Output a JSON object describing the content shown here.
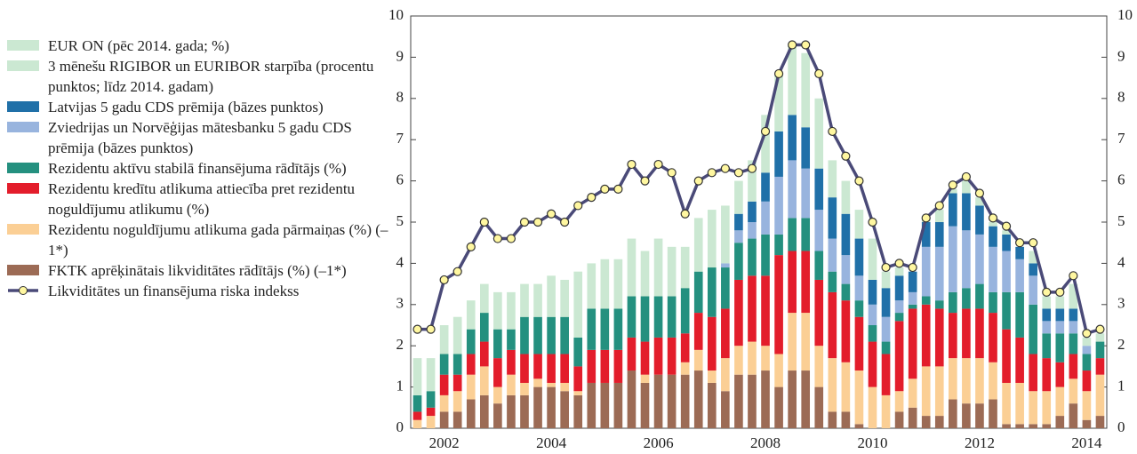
{
  "chart_data": {
    "type": "bar",
    "categories": [
      null,
      null,
      "2002",
      null,
      null,
      null,
      null,
      null,
      null,
      null,
      "2004",
      null,
      null,
      null,
      null,
      null,
      null,
      null,
      "2006",
      null,
      null,
      null,
      null,
      null,
      null,
      null,
      "2008",
      null,
      null,
      null,
      null,
      null,
      null,
      null,
      "2010",
      null,
      null,
      null,
      null,
      null,
      null,
      null,
      "2012",
      null,
      null,
      null,
      null,
      null,
      null,
      null,
      "2014",
      null
    ],
    "ylim": [
      0,
      10
    ],
    "yticks": [
      0,
      1,
      2,
      3,
      4,
      5,
      6,
      7,
      8,
      9,
      10
    ],
    "y2lim": [
      0,
      10
    ],
    "y2ticks": [
      0,
      1,
      2,
      3,
      4,
      5,
      6,
      7,
      8,
      9,
      10
    ],
    "stacked": true,
    "series": [
      {
        "name": "EUR ON (pēc 2014. gada; %)",
        "color": "#cbe8d2",
        "values": [
          0,
          0,
          0,
          0,
          0,
          0,
          0,
          0,
          0,
          0,
          0,
          0,
          0,
          0,
          0,
          0,
          0,
          0,
          0,
          0,
          0,
          0,
          0,
          0,
          0,
          0,
          0,
          0,
          0,
          0,
          0,
          0,
          0,
          0,
          0,
          0,
          0,
          0,
          0,
          0,
          0,
          0,
          0,
          0,
          0,
          0,
          0,
          0,
          0.3,
          0.6,
          0.2,
          0.2
        ]
      },
      {
        "name": "3 mēnešu RIGIBOR un EURIBOR starpība (procentu punktos; līdz 2014. gadam)",
        "color": "#cbe8d2",
        "values": [
          0.9,
          0.8,
          0.7,
          0.9,
          0.7,
          0.7,
          0.9,
          0.9,
          0.8,
          0.8,
          1.0,
          0.9,
          1.6,
          1.1,
          1.2,
          1.2,
          1.4,
          1.1,
          1.4,
          1.2,
          1.0,
          1.3,
          1.4,
          1.4,
          0.8,
          1.0,
          1.4,
          1.4,
          1.7,
          1.8,
          1.7,
          0.9,
          0.8,
          0.7,
          1.0,
          0.4,
          0.2,
          0,
          0.1,
          0.3,
          0.1,
          0.3,
          0.2,
          0.1,
          0.1,
          0,
          0.3,
          0.3,
          0,
          0,
          0,
          0
        ]
      },
      {
        "name": "Latvijas 5 gadu CDS prēmija (bāzes punktos)",
        "color": "#2070a8",
        "values": [
          0,
          0,
          0,
          0,
          0,
          0,
          0,
          0,
          0,
          0,
          0,
          0,
          0,
          0,
          0,
          0,
          0,
          0,
          0,
          0,
          0,
          0,
          0,
          0,
          0.4,
          0.5,
          0.7,
          1.1,
          1.1,
          1.0,
          1.0,
          1.0,
          1.0,
          0.9,
          0.6,
          0.7,
          0.6,
          0.5,
          0.6,
          0.6,
          0.8,
          0.9,
          0.7,
          0.5,
          0.4,
          0.3,
          0.3,
          0.3,
          0.3,
          0.3,
          0,
          0
        ]
      },
      {
        "name": "Zviedrijas un Norvēģijas mātesbanku 5 gadu CDS prēmija (bāzes punktos)",
        "color": "#98b4de",
        "values": [
          0,
          0,
          0,
          0,
          0,
          0,
          0,
          0,
          0,
          0,
          0,
          0,
          0,
          0,
          0,
          0,
          0,
          0,
          0,
          0,
          0,
          0,
          0,
          0.1,
          0.3,
          0.4,
          0.8,
          1.4,
          1.4,
          1.2,
          1.0,
          0.8,
          0.7,
          0.6,
          0.5,
          0.6,
          0.3,
          0.3,
          1.2,
          1.3,
          1.6,
          1.4,
          1.2,
          1.1,
          1.0,
          0.8,
          0.7,
          0.3,
          0.3,
          0.3,
          0.2,
          0
        ]
      },
      {
        "name": "Rezidentu aktīvu stabilā finansējuma rādītājs (%)",
        "color": "#24907f",
        "values": [
          0.4,
          0.4,
          0.5,
          0.5,
          0.6,
          0.7,
          0.7,
          0.5,
          0.9,
          0.9,
          0.9,
          0.9,
          0.7,
          1.0,
          1.0,
          1.0,
          1.0,
          1.1,
          1.0,
          1.0,
          1.1,
          1.0,
          1.2,
          1.0,
          0.9,
          0.9,
          1.0,
          0.5,
          0.8,
          0.8,
          0.7,
          0.5,
          0.4,
          0.4,
          0.4,
          0.3,
          0.2,
          0.1,
          0.2,
          0.2,
          0.5,
          0.5,
          0.6,
          0.5,
          0.9,
          1.1,
          1.2,
          0.6,
          0.7,
          0.5,
          0.4,
          0.4
        ]
      },
      {
        "name": "Rezidentu kredītu atlikuma attiecība pret rezidentu noguldījumu atlikumu (%)",
        "color": "#e31d2b",
        "values": [
          0.2,
          0.2,
          0.5,
          0.4,
          0.5,
          0.6,
          0.7,
          0.6,
          0.7,
          0.6,
          0.7,
          0.7,
          0.6,
          0.8,
          0.8,
          0.8,
          0.8,
          0.8,
          0.9,
          0.9,
          0.7,
          0.9,
          1.3,
          1.2,
          1.6,
          1.6,
          1.7,
          2.4,
          1.5,
          1.5,
          1.6,
          1.6,
          1.5,
          1.3,
          1.1,
          1.0,
          1.7,
          1.7,
          1.5,
          1.4,
          1.1,
          1.2,
          1.2,
          1.2,
          1.3,
          1.1,
          0.9,
          0.8,
          0.6,
          0.6,
          0.5,
          0.4
        ]
      },
      {
        "name": "Rezidentu noguldījumu atlikuma gada pārmaiņas (%) (–1*)",
        "color": "#fbcf95",
        "values": [
          0.2,
          0.3,
          0.4,
          0.5,
          0.6,
          0.7,
          0.4,
          0.5,
          0.3,
          0.2,
          0.1,
          0.2,
          0.1,
          0,
          0,
          0,
          0,
          0.2,
          0,
          0,
          0.3,
          0.5,
          0.3,
          0.8,
          0.7,
          0.8,
          0.6,
          0.8,
          1.4,
          1.4,
          1.0,
          1.3,
          1.2,
          1.3,
          1.0,
          0.8,
          0.5,
          0.7,
          1.2,
          1.2,
          1.0,
          1.1,
          1.1,
          0.9,
          1.0,
          1.0,
          0.8,
          0.8,
          0.7,
          0.6,
          0.7,
          1.0
        ]
      },
      {
        "name": "FKTK aprēķinātais likviditātes rādītājs (%) (–1*)",
        "color": "#9c6b55",
        "values": [
          0,
          0,
          0.4,
          0.4,
          0.7,
          0.8,
          0.6,
          0.8,
          0.8,
          1.0,
          1.0,
          0.9,
          0.8,
          1.1,
          1.1,
          1.1,
          1.4,
          1.1,
          1.3,
          1.3,
          1.3,
          1.4,
          1.1,
          0.9,
          1.3,
          1.3,
          1.4,
          1.0,
          1.4,
          1.4,
          1.0,
          0.4,
          0.4,
          0.1,
          0,
          0,
          0.4,
          0.5,
          0.3,
          0.3,
          0.7,
          0.6,
          0.6,
          0.7,
          0.1,
          0.1,
          0.1,
          0.1,
          0.3,
          0.6,
          0.2,
          0.3
        ]
      },
      {
        "name": "Likviditātes un finansējuma riska indekss",
        "type": "line",
        "color": "#4a4a78",
        "marker_color": "#fff7a0",
        "values": [
          2.4,
          2.4,
          3.6,
          3.8,
          4.4,
          5.0,
          4.6,
          4.6,
          5.0,
          5.0,
          5.2,
          5.0,
          5.4,
          5.6,
          5.8,
          5.8,
          6.4,
          6.0,
          6.4,
          6.2,
          5.2,
          6.0,
          6.2,
          6.3,
          6.2,
          6.3,
          7.2,
          8.6,
          9.3,
          9.3,
          8.6,
          7.2,
          6.6,
          6.0,
          5.0,
          3.9,
          4.0,
          3.9,
          5.1,
          5.4,
          5.9,
          6.1,
          5.7,
          5.1,
          4.9,
          4.5,
          4.5,
          3.3,
          3.3,
          3.7,
          2.3,
          2.4
        ]
      }
    ]
  }
}
